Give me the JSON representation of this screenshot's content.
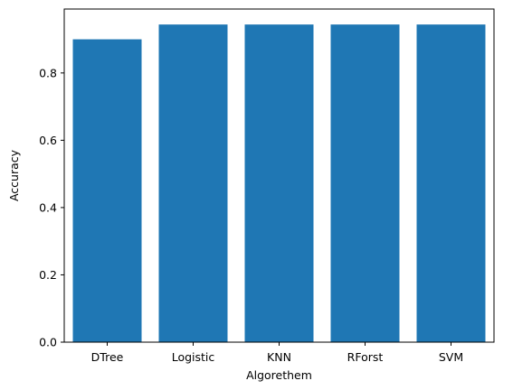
{
  "chart_data": {
    "type": "bar",
    "categories": [
      "DTree",
      "Logistic",
      "KNN",
      "RForst",
      "SVM"
    ],
    "values": [
      0.9,
      0.944,
      0.944,
      0.944,
      0.944
    ],
    "title": "",
    "xlabel": "Algorethem",
    "ylabel": "Accuracy",
    "ylim": [
      0,
      0.99
    ],
    "yticks": [
      0.0,
      0.2,
      0.4,
      0.6,
      0.8
    ],
    "ytick_labels": [
      "0.0",
      "0.2",
      "0.4",
      "0.6",
      "0.8"
    ],
    "grid": false,
    "bar_color": "#1f77b4"
  }
}
